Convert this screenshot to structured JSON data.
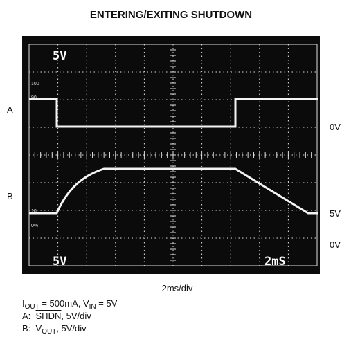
{
  "title": "ENTERING/EXITING SHUTDOWN",
  "screen_labels": {
    "top_left": "5V",
    "bottom_left": "5V",
    "bottom_right": "2mS",
    "scale_100": "100",
    "scale_90": "90",
    "scale_10": "10",
    "scale_0": "0%"
  },
  "side_labels": {
    "a": "A",
    "b": "B",
    "a_zero": "0V",
    "b_five": "5V",
    "b_zero": "0V"
  },
  "x_caption": "2ms/div",
  "notes": [
    [
      "I",
      "OUT",
      " = 500mA, V",
      "IN",
      " = 5V"
    ],
    [
      "A:  ",
      "SHDN",
      ", 5V/div"
    ],
    [
      "B:  V",
      "OUT",
      ", 5V/div"
    ]
  ]
}
